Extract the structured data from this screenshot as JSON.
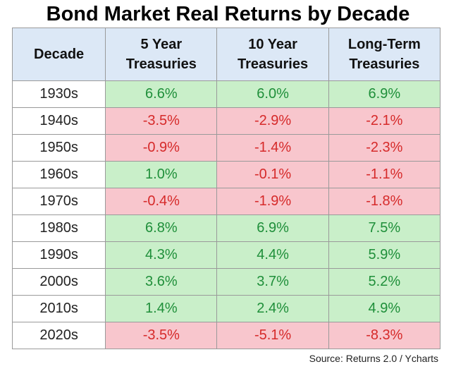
{
  "title": "Bond Market Real Returns by Decade",
  "source": "Source: Returns 2.0 / Ycharts",
  "colors": {
    "header_bg": "#dce8f6",
    "positive_bg": "#c9efc9",
    "negative_bg": "#f8c6cd",
    "positive_text": "#1f8f3a",
    "negative_text": "#d62a2a"
  },
  "chart_data": {
    "type": "table",
    "title": "Bond Market Real Returns by Decade",
    "columns": [
      "Decade",
      "5 Year Treasuries",
      "10 Year Treasuries",
      "Long-Term Treasuries"
    ],
    "rows": [
      {
        "decade": "1930s",
        "values": [
          "6.6%",
          "6.0%",
          "6.9%"
        ]
      },
      {
        "decade": "1940s",
        "values": [
          "-3.5%",
          "-2.9%",
          "-2.1%"
        ]
      },
      {
        "decade": "1950s",
        "values": [
          "-0.9%",
          "-1.4%",
          "-2.3%"
        ]
      },
      {
        "decade": "1960s",
        "values": [
          "1.0%",
          "-0.1%",
          "-1.1%"
        ]
      },
      {
        "decade": "1970s",
        "values": [
          "-0.4%",
          "-1.9%",
          "-1.8%"
        ]
      },
      {
        "decade": "1980s",
        "values": [
          "6.8%",
          "6.9%",
          "7.5%"
        ]
      },
      {
        "decade": "1990s",
        "values": [
          "4.3%",
          "4.4%",
          "5.9%"
        ]
      },
      {
        "decade": "2000s",
        "values": [
          "3.6%",
          "3.7%",
          "5.2%"
        ]
      },
      {
        "decade": "2010s",
        "values": [
          "1.4%",
          "2.4%",
          "4.9%"
        ]
      },
      {
        "decade": "2020s",
        "values": [
          "-3.5%",
          "-5.1%",
          "-8.3%"
        ]
      }
    ]
  }
}
